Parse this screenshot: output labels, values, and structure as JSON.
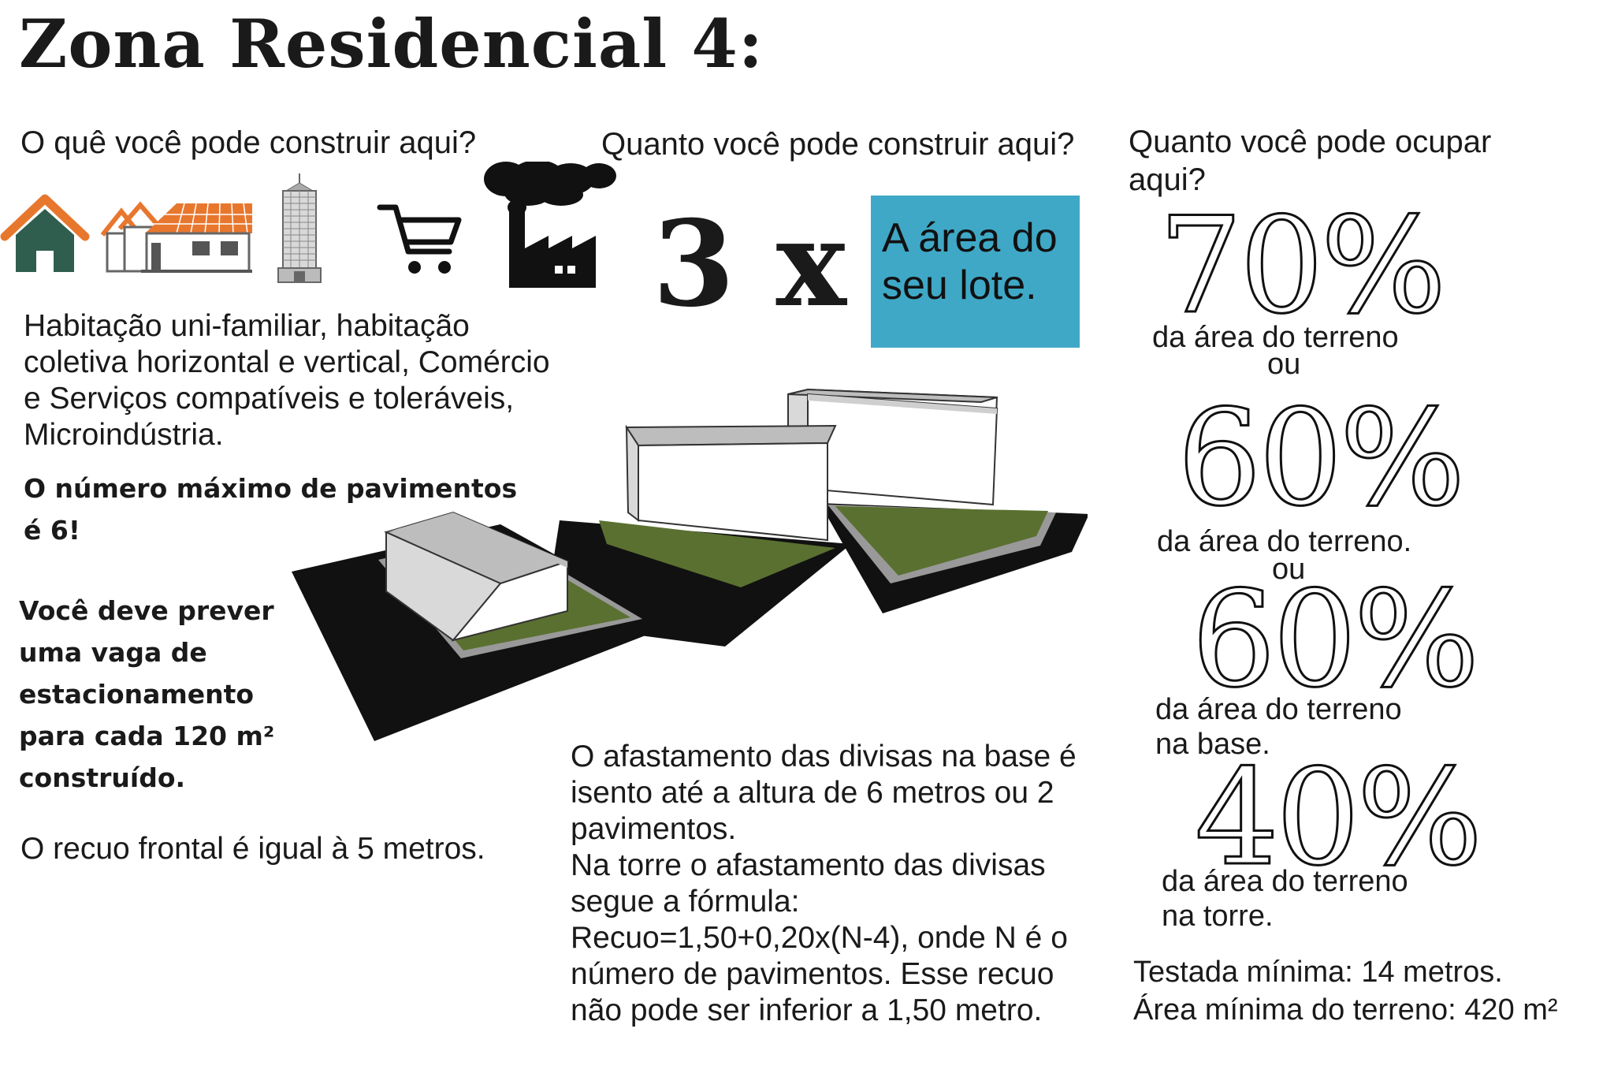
{
  "title": "Zona Residencial 4:",
  "what": {
    "question": "O quê você pode construir aqui?",
    "icons": [
      "house-icon",
      "row-houses-icon",
      "skyscraper-icon",
      "shopping-cart-icon",
      "factory-icon"
    ],
    "uses": "Habitação uni-familiar, habitação\ncoletiva horizontal e vertical,  Comércio\ne Serviços compatíveis e toleráveis,\nMicroindústria.",
    "max_floors": "O número máximo de pavimentos\né 6!",
    "parking": "Você deve prever\numa vaga de\nestacionamento\npara cada 120 m²\nconstruído.",
    "front_setback": "O recuo frontal é igual à 5 metros."
  },
  "how_much": {
    "question": "Quanto você pode construir aqui?",
    "multiplier": "3 x",
    "lot_area": "A área do\nseu lote.",
    "setback_text": " O afastamento das divisas na base é\nisento até a altura de 6 metros ou 2\npavimentos.\nNa torre o afastamento das divisas\nsegue a fórmula:\nRecuo=1,50+0,20x(N-4), onde N é o\nnúmero de pavimentos. Esse recuo\nnão pode ser inferior a 1,50 metro."
  },
  "occupy": {
    "question": "Quanto você pode ocupar\naqui?",
    "items": [
      {
        "percent": "70%",
        "caption": "da área do terreno"
      },
      {
        "percent": "60%",
        "caption": "da área do terreno."
      },
      {
        "percent": "60%",
        "caption": "da área do terreno\nna base."
      },
      {
        "percent": "40%",
        "caption": "da área do terreno\nna torre."
      }
    ],
    "or_label": "ou",
    "min_frontage": "Testada mínima: 14 metros.",
    "min_area": "Área mínima do terreno: 420 m²"
  },
  "colors": {
    "orange": "#e8772e",
    "green": "#2f5e4e",
    "lot_box": "#3fa8c6",
    "lawn": "#5a7030"
  }
}
